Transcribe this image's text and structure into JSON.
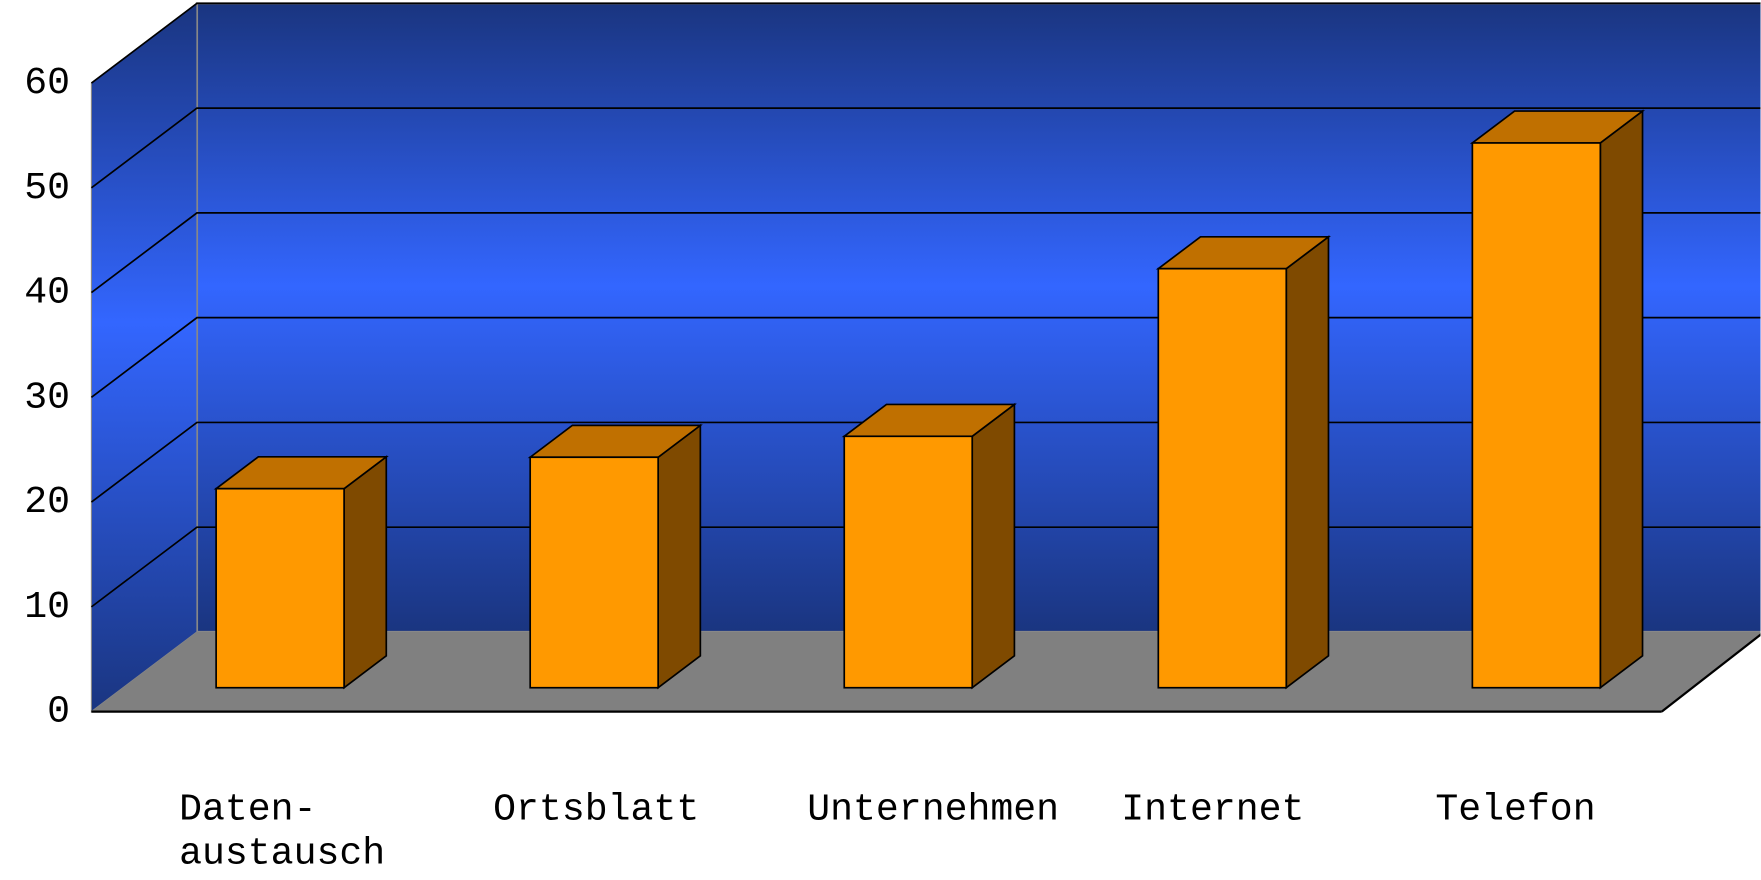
{
  "chart_data": {
    "type": "bar3d",
    "categories": [
      "Daten-\naustausch",
      "Ortsblatt",
      "Unternehmen",
      "Internet",
      "Telefon"
    ],
    "values": [
      19,
      22,
      24,
      40,
      52
    ],
    "color": "#ff9900",
    "ylim": [
      0,
      60
    ],
    "yticks": [
      0,
      10,
      20,
      30,
      40,
      50,
      60
    ],
    "grid": true
  }
}
